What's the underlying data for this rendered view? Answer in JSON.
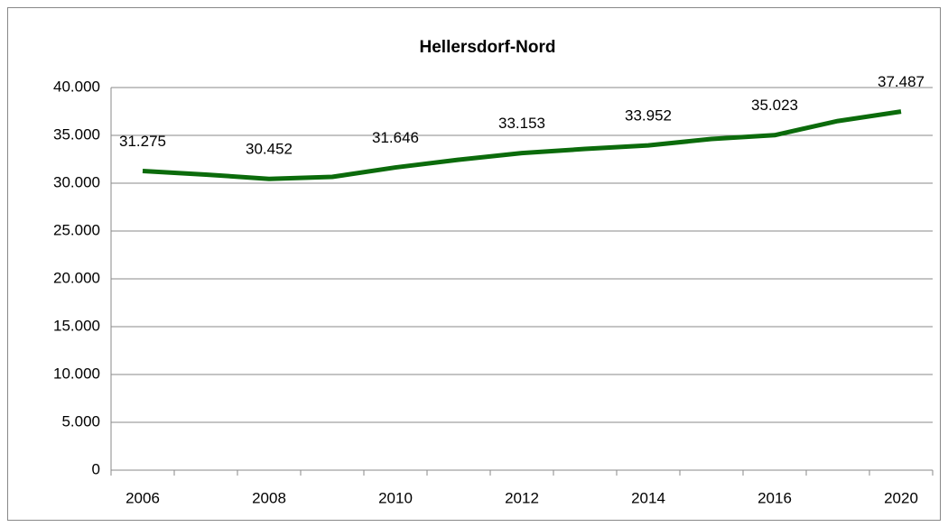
{
  "chart_data": {
    "type": "line",
    "title": "Hellersdorf-Nord",
    "categories": [
      "2006",
      null,
      "2008",
      null,
      "2010",
      null,
      "2012",
      null,
      "2014",
      null,
      "2016",
      null,
      "2020"
    ],
    "series": [
      {
        "name": "Hellersdorf-Nord",
        "color": "#0b6b0b",
        "values": [
          31275,
          30900,
          30452,
          30660,
          31646,
          32450,
          33153,
          33580,
          33952,
          34620,
          35023,
          36500,
          37487
        ],
        "value_labels": [
          "31.275",
          null,
          "30.452",
          null,
          "31.646",
          null,
          "33.153",
          null,
          "33.952",
          null,
          "35.023",
          null,
          "37.487"
        ]
      }
    ],
    "ylim": [
      0,
      40000
    ],
    "yticks": [
      0,
      {
        "value": 5000,
        "label": "5.000"
      },
      {
        "value": 10000,
        "label": "10.000"
      },
      {
        "value": 15000,
        "label": "15.000"
      },
      {
        "value": 20000,
        "label": "20.000"
      },
      {
        "value": 25000,
        "label": "25.000"
      },
      {
        "value": 30000,
        "label": "30.000"
      },
      {
        "value": 35000,
        "label": "35.000"
      },
      {
        "value": 40000,
        "label": "40.000"
      }
    ],
    "grid": true
  }
}
